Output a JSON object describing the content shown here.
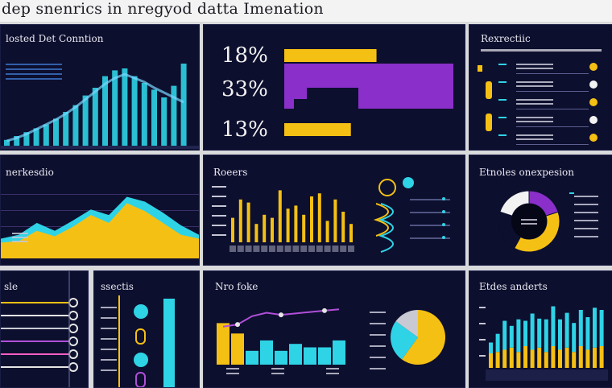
{
  "header": {
    "title": "dep snenrics in nregyod datta Imenation"
  },
  "panels": {
    "p1": {
      "title": "losted Det Conntion"
    },
    "p2": {
      "title": ""
    },
    "p3": {
      "title": "Rexrectiic"
    },
    "p4": {
      "title": "nerkesdio"
    },
    "p5": {
      "title": "Roeers"
    },
    "p6": {
      "title": "Etnoles onexpesion"
    },
    "p7": {
      "title": "sle"
    },
    "p8": {
      "title": "ssectis"
    },
    "p9": {
      "title": "Nro foke"
    },
    "p10": {
      "title": "Etdes anderts"
    }
  },
  "colors": {
    "cyan": "#2fd3e6",
    "yellow": "#f5c014",
    "purple": "#8a2fc9",
    "panel": "#0d0f2e"
  },
  "chart_data": [
    {
      "id": "p1",
      "type": "bar",
      "values": [
        6,
        10,
        14,
        18,
        22,
        28,
        35,
        42,
        52,
        60,
        72,
        78,
        80,
        72,
        65,
        58,
        50,
        62,
        85
      ],
      "line": [
        5,
        8,
        12,
        17,
        22,
        27,
        33,
        40,
        48,
        56,
        64,
        70,
        74,
        70,
        66,
        60,
        55,
        50,
        45
      ],
      "ylim": [
        0,
        100
      ]
    },
    {
      "id": "p2",
      "type": "bar",
      "categories": [
        "18%",
        "33%",
        "13%"
      ],
      "values": [
        18,
        33,
        13
      ]
    },
    {
      "id": "p4",
      "type": "area",
      "values": [
        20,
        22,
        35,
        28,
        40,
        55,
        45,
        70,
        60,
        45,
        30,
        25
      ],
      "line": [
        25,
        30,
        45,
        35,
        48,
        62,
        55,
        78,
        72,
        58,
        42,
        30
      ],
      "ylim": [
        0,
        100
      ]
    },
    {
      "id": "p5",
      "type": "bar",
      "values": [
        40,
        70,
        65,
        30,
        45,
        40,
        85,
        55,
        60,
        45,
        75,
        80,
        35,
        70,
        50,
        30
      ],
      "ylim": [
        0,
        100
      ]
    },
    {
      "id": "p6",
      "type": "pie",
      "values": [
        20,
        38,
        22,
        20
      ],
      "colors": [
        "#8a2fc9",
        "#f5c014",
        "#0d0f2e",
        "#f2f2f2"
      ]
    },
    {
      "id": "p9",
      "type": "bar",
      "values": [
        60,
        45,
        20,
        35,
        20,
        30,
        25,
        25,
        35
      ],
      "line": [
        55,
        58,
        70,
        75,
        72,
        74,
        76,
        78,
        80
      ],
      "ylim": [
        0,
        100
      ]
    },
    {
      "id": "p9pie",
      "type": "pie",
      "values": [
        60,
        25,
        15
      ],
      "colors": [
        "#f5c014",
        "#2fd3e6",
        "#c9c9d3"
      ]
    },
    {
      "id": "p10",
      "type": "bar",
      "series": [
        {
          "values": [
            20,
            22,
            25,
            28,
            22,
            30,
            25,
            28,
            22,
            30,
            25,
            28,
            22,
            30,
            25,
            28,
            30
          ]
        },
        {
          "values": [
            15,
            25,
            40,
            30,
            45,
            35,
            50,
            40,
            45,
            55,
            42,
            48,
            40,
            50,
            45,
            55,
            50
          ]
        }
      ],
      "ylim": [
        0,
        100
      ]
    }
  ]
}
